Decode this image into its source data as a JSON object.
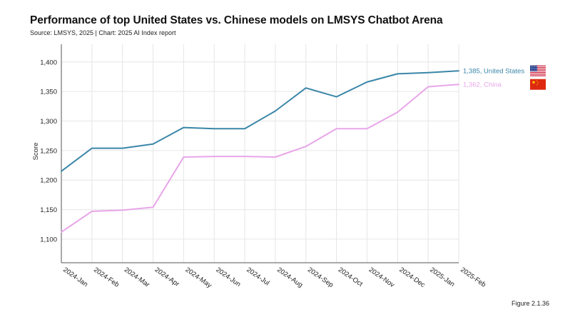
{
  "chart_data": {
    "type": "line",
    "title": "Performance of top United States vs. Chinese models on LMSYS Chatbot Arena",
    "subtitle": "Source: LMSYS, 2025 | Chart: 2025 AI Index report",
    "ylabel": "Score",
    "xlabel": "",
    "ylim": [
      1060,
      1430
    ],
    "yticks": [
      1100,
      1150,
      1200,
      1250,
      1300,
      1350,
      1400
    ],
    "ytick_labels": [
      "1,100",
      "1,150",
      "1,200",
      "1,250",
      "1,300",
      "1,350",
      "1,400"
    ],
    "grid": true,
    "categories": [
      "2024-Jan",
      "2024-Feb",
      "2024-Mar",
      "2024-Apr",
      "2024-May",
      "2024-Jun",
      "2024-Jul",
      "2024-Aug",
      "2024-Sep",
      "2024-Oct",
      "2024-Nov",
      "2024-Dec",
      "2025-Jan",
      "2025-Feb"
    ],
    "series": [
      {
        "name": "United States",
        "color": "#3a86a8",
        "end_label": "1,385, United States",
        "flag_icon": "us-flag-icon",
        "values": [
          1215,
          1254,
          1254,
          1261,
          1289,
          1287,
          1287,
          1317,
          1356,
          1341,
          1366,
          1380,
          1382,
          1385
        ]
      },
      {
        "name": "China",
        "color": "#e8a6e8",
        "end_label": "1,362, China",
        "flag_icon": "china-flag-icon",
        "values": [
          1112,
          1147,
          1149,
          1154,
          1239,
          1240,
          1240,
          1239,
          1257,
          1287,
          1287,
          1315,
          1358,
          1362
        ]
      }
    ]
  },
  "figure_label": "Figure 2.1.36"
}
